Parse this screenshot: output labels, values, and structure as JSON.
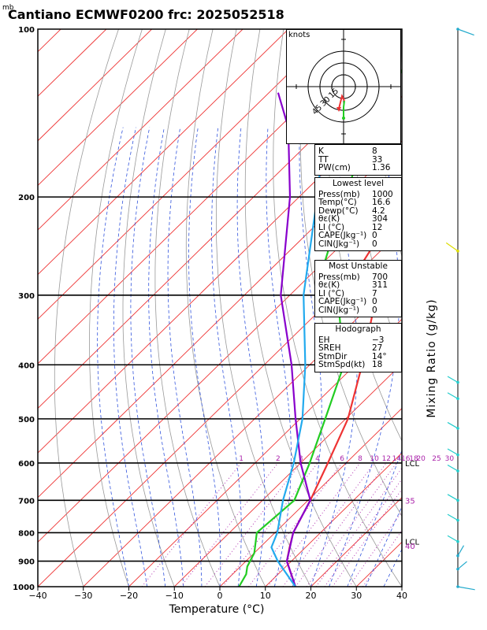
{
  "header": {
    "title": "Cantiano ECMWF0200  frc: 2025052518",
    "unit": "mb"
  },
  "chart_data": {
    "type": "line",
    "xlabel": "Temperature (°C)",
    "ylabel": "Mixing Ratio (g/kg)",
    "xlim": [
      -40,
      40
    ],
    "ylim": [
      1000,
      100
    ],
    "x_ticks": [
      "−40",
      "−30",
      "−20",
      "−10",
      "0",
      "10",
      "20",
      "30",
      "40"
    ],
    "y_ticks": [
      "100",
      "200",
      "300",
      "400",
      "500",
      "600",
      "700",
      "800",
      "900",
      "1000"
    ],
    "mixing_ratio_labels": [
      "1",
      "2",
      "3",
      "4",
      "6",
      "8",
      "10",
      "12",
      "14",
      "16",
      "18",
      "20",
      "25",
      "30"
    ],
    "series": [
      {
        "color": "#ee3333",
        "points": [
          [
            1000,
            16.6
          ],
          [
            900,
            9.0
          ],
          [
            850,
            6.5
          ],
          [
            800,
            4.0
          ],
          [
            700,
            0.5
          ],
          [
            600,
            -4.0
          ],
          [
            500,
            -9.5
          ],
          [
            400,
            -18.5
          ],
          [
            300,
            -31.0
          ],
          [
            260,
            -41.5
          ],
          [
            200,
            -47
          ],
          [
            150,
            -54
          ],
          [
            100,
            -60
          ]
        ]
      },
      {
        "color": "#22cc22",
        "points": [
          [
            1000,
            4.2
          ],
          [
            950,
            3.0
          ],
          [
            920,
            1.5
          ],
          [
            870,
            0.0
          ],
          [
            800,
            -4.0
          ],
          [
            700,
            -3.0
          ],
          [
            600,
            -8.0
          ],
          [
            500,
            -14.5
          ],
          [
            400,
            -22.5
          ],
          [
            300,
            -39.5
          ],
          [
            260,
            -50.0
          ],
          [
            200,
            -60
          ],
          [
            150,
            -70
          ],
          [
            100,
            -80
          ]
        ]
      },
      {
        "color": "#8800cc",
        "points": [
          [
            1000,
            16.6
          ],
          [
            900,
            9.0
          ],
          [
            800,
            4.0
          ],
          [
            700,
            0.5
          ],
          [
            600,
            -10.0
          ],
          [
            500,
            -21.0
          ],
          [
            400,
            -34.0
          ],
          [
            300,
            -52.0
          ],
          [
            200,
            -72.0
          ],
          [
            150,
            -88.0
          ],
          [
            130,
            -98.0
          ]
        ]
      },
      {
        "color": "#22aaee",
        "points": [
          [
            1000,
            16.6
          ],
          [
            900,
            7.0
          ],
          [
            850,
            2.5
          ],
          [
            800,
            0.5
          ],
          [
            700,
            -5.5
          ],
          [
            600,
            -11.5
          ],
          [
            500,
            -19.5
          ],
          [
            400,
            -31.0
          ],
          [
            300,
            -47.0
          ],
          [
            200,
            -66.0
          ],
          [
            150,
            -80.0
          ],
          [
            130,
            -88.0
          ]
        ]
      }
    ],
    "annotations": [
      {
        "text": "LCL",
        "pressure": 600
      },
      {
        "text": "35",
        "pressure": 700
      },
      {
        "text": "LCL",
        "pressure": 830
      },
      {
        "text": "40",
        "pressure": 845
      }
    ],
    "hodograph": {
      "units": "knots",
      "ring_labels": [
        "15",
        "30",
        "45"
      ]
    }
  },
  "panels": {
    "indices": [
      {
        "k": "K",
        "v": "8"
      },
      {
        "k": "TT",
        "v": "33"
      },
      {
        "k": "PW(cm)",
        "v": "1.36"
      }
    ],
    "lowest": {
      "title": "Lowest level",
      "rows": [
        {
          "k": "Press(mb)",
          "v": "1000"
        },
        {
          "k": "Temp(°C)",
          "v": "16.6"
        },
        {
          "k": "Dewp(°C)",
          "v": "4.2"
        },
        {
          "k": "θε(K)",
          "v": "304"
        },
        {
          "k": "LI (°C)",
          "v": "12"
        },
        {
          "k": "CAPE(Jkg⁻¹)",
          "v": "0"
        },
        {
          "k": "CIN(Jkg⁻¹)",
          "v": "0"
        }
      ]
    },
    "unstable": {
      "title": "Most Unstable",
      "rows": [
        {
          "k": "Press(mb)",
          "v": "700"
        },
        {
          "k": "θε(K)",
          "v": "311"
        },
        {
          "k": "LI (°C)",
          "v": "7"
        },
        {
          "k": "CAPE(Jkg⁻¹)",
          "v": "0"
        },
        {
          "k": "CIN(Jkg⁻¹)",
          "v": "0"
        }
      ]
    },
    "hodograph": {
      "title": "Hodograph",
      "rows": [
        {
          "k": "EH",
          "v": "−3"
        },
        {
          "k": "SREH",
          "v": "27"
        },
        {
          "k": "StmDir",
          "v": "14°"
        },
        {
          "k": "StmSpd(kt)",
          "v": "18"
        }
      ]
    }
  },
  "colors": {
    "isotherm": "#ee3333",
    "dry_adiabat": "#999999",
    "moist_adiabat": "#3355dd",
    "mixing_ratio": "#aa22aa",
    "wind": "#22cccc"
  }
}
